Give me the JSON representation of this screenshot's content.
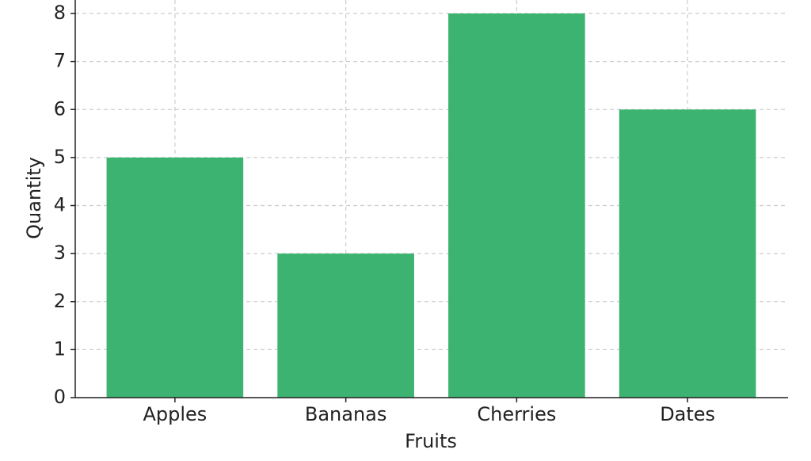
{
  "chart_data": {
    "type": "bar",
    "x_label": "Fruits",
    "y_label": "Quantity",
    "categories": [
      "Apples",
      "Bananas",
      "Cherries",
      "Dates"
    ],
    "values": [
      5,
      3,
      8,
      6
    ],
    "color": "#3cb371",
    "ylim": [
      0,
      8
    ],
    "yticks": [
      0,
      1,
      2,
      3,
      4,
      5,
      6,
      7,
      8
    ],
    "grid": true
  }
}
